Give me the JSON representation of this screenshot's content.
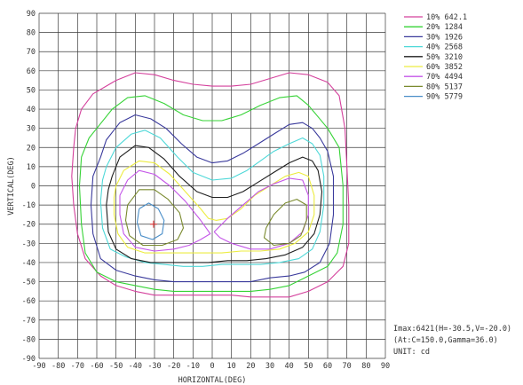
{
  "chart_data": {
    "type": "line",
    "xlabel": "HORIZONTAL(DEG)",
    "ylabel": "VERTICAL(DEG)",
    "xlim": [
      -90,
      90
    ],
    "ylim": [
      -90,
      90
    ],
    "x_ticks": [
      -90,
      -80,
      -70,
      -60,
      -50,
      -40,
      -30,
      -20,
      -10,
      0,
      10,
      20,
      30,
      40,
      50,
      60,
      70,
      80,
      90
    ],
    "y_ticks": [
      90,
      80,
      70,
      60,
      50,
      40,
      30,
      20,
      10,
      0,
      -10,
      -20,
      -30,
      -40,
      -50,
      -60,
      -70,
      -80,
      -90
    ],
    "grid": true,
    "legend_position": "right",
    "series": [
      {
        "name": "10% 642.1",
        "color": "#d4409c",
        "points": [
          [
            -68,
            40
          ],
          [
            -62,
            48
          ],
          [
            -50,
            55
          ],
          [
            -40,
            59
          ],
          [
            -30,
            58
          ],
          [
            -20,
            55
          ],
          [
            -10,
            53
          ],
          [
            0,
            52
          ],
          [
            10,
            52
          ],
          [
            20,
            53
          ],
          [
            30,
            56
          ],
          [
            40,
            59
          ],
          [
            50,
            58
          ],
          [
            60,
            54
          ],
          [
            66,
            47
          ],
          [
            69,
            30
          ],
          [
            70,
            10
          ],
          [
            71,
            -10
          ],
          [
            71,
            -30
          ],
          [
            68,
            -42
          ],
          [
            60,
            -50
          ],
          [
            50,
            -55
          ],
          [
            40,
            -58
          ],
          [
            30,
            -58
          ],
          [
            20,
            -58
          ],
          [
            10,
            -57
          ],
          [
            0,
            -57
          ],
          [
            -10,
            -57
          ],
          [
            -20,
            -57
          ],
          [
            -30,
            -57
          ],
          [
            -40,
            -55
          ],
          [
            -50,
            -52
          ],
          [
            -58,
            -47
          ],
          [
            -66,
            -38
          ],
          [
            -70,
            -25
          ],
          [
            -72,
            -10
          ],
          [
            -73,
            5
          ],
          [
            -72,
            20
          ],
          [
            -71,
            30
          ],
          [
            -68,
            40
          ]
        ]
      },
      {
        "name": "20% 1284",
        "color": "#36d336",
        "points": [
          [
            -64,
            25
          ],
          [
            -60,
            30
          ],
          [
            -52,
            40
          ],
          [
            -44,
            46
          ],
          [
            -35,
            47
          ],
          [
            -25,
            43
          ],
          [
            -15,
            37
          ],
          [
            -5,
            34
          ],
          [
            5,
            34
          ],
          [
            15,
            37
          ],
          [
            25,
            42
          ],
          [
            35,
            46
          ],
          [
            44,
            47
          ],
          [
            50,
            42
          ],
          [
            55,
            36
          ],
          [
            60,
            30
          ],
          [
            66,
            20
          ],
          [
            68,
            0
          ],
          [
            68,
            -20
          ],
          [
            65,
            -35
          ],
          [
            60,
            -42
          ],
          [
            50,
            -47
          ],
          [
            40,
            -52
          ],
          [
            30,
            -54
          ],
          [
            20,
            -55
          ],
          [
            10,
            -55
          ],
          [
            0,
            -55
          ],
          [
            -10,
            -55
          ],
          [
            -20,
            -55
          ],
          [
            -30,
            -54
          ],
          [
            -40,
            -52
          ],
          [
            -50,
            -50
          ],
          [
            -60,
            -45
          ],
          [
            -66,
            -35
          ],
          [
            -68,
            -20
          ],
          [
            -69,
            0
          ],
          [
            -68,
            15
          ],
          [
            -64,
            25
          ]
        ]
      },
      {
        "name": "30% 1926",
        "color": "#3a3a9c",
        "points": [
          [
            -58,
            15
          ],
          [
            -55,
            24
          ],
          [
            -48,
            33
          ],
          [
            -40,
            37
          ],
          [
            -32,
            35
          ],
          [
            -24,
            30
          ],
          [
            -16,
            22
          ],
          [
            -8,
            15
          ],
          [
            0,
            12
          ],
          [
            8,
            13
          ],
          [
            16,
            17
          ],
          [
            24,
            22
          ],
          [
            32,
            27
          ],
          [
            40,
            32
          ],
          [
            47,
            33
          ],
          [
            52,
            30
          ],
          [
            56,
            25
          ],
          [
            60,
            18
          ],
          [
            63,
            5
          ],
          [
            63,
            -15
          ],
          [
            61,
            -30
          ],
          [
            56,
            -40
          ],
          [
            48,
            -45
          ],
          [
            40,
            -47
          ],
          [
            30,
            -48
          ],
          [
            20,
            -50
          ],
          [
            10,
            -50
          ],
          [
            0,
            -50
          ],
          [
            -10,
            -50
          ],
          [
            -20,
            -50
          ],
          [
            -30,
            -49
          ],
          [
            -40,
            -47
          ],
          [
            -50,
            -44
          ],
          [
            -58,
            -38
          ],
          [
            -62,
            -25
          ],
          [
            -63,
            -10
          ],
          [
            -62,
            5
          ],
          [
            -58,
            15
          ]
        ]
      },
      {
        "name": "40% 2568",
        "color": "#4ed8d8",
        "points": [
          [
            -55,
            10
          ],
          [
            -50,
            20
          ],
          [
            -42,
            27
          ],
          [
            -35,
            29
          ],
          [
            -27,
            25
          ],
          [
            -18,
            15
          ],
          [
            -10,
            7
          ],
          [
            0,
            3
          ],
          [
            10,
            4
          ],
          [
            18,
            8
          ],
          [
            25,
            13
          ],
          [
            32,
            18
          ],
          [
            40,
            22
          ],
          [
            47,
            25
          ],
          [
            52,
            22
          ],
          [
            56,
            16
          ],
          [
            58,
            5
          ],
          [
            58,
            -10
          ],
          [
            56,
            -24
          ],
          [
            52,
            -33
          ],
          [
            45,
            -38
          ],
          [
            35,
            -40
          ],
          [
            25,
            -41
          ],
          [
            15,
            -41
          ],
          [
            5,
            -41
          ],
          [
            -5,
            -42
          ],
          [
            -15,
            -42
          ],
          [
            -25,
            -41
          ],
          [
            -35,
            -40
          ],
          [
            -45,
            -37
          ],
          [
            -53,
            -33
          ],
          [
            -57,
            -22
          ],
          [
            -58,
            -8
          ],
          [
            -57,
            3
          ],
          [
            -55,
            10
          ]
        ]
      },
      {
        "name": "50% 3210",
        "color": "#1e1e1e",
        "points": [
          [
            -52,
            5
          ],
          [
            -48,
            15
          ],
          [
            -40,
            21
          ],
          [
            -33,
            20
          ],
          [
            -25,
            14
          ],
          [
            -17,
            5
          ],
          [
            -8,
            -3
          ],
          [
            0,
            -6
          ],
          [
            8,
            -6
          ],
          [
            16,
            -3
          ],
          [
            24,
            2
          ],
          [
            32,
            7
          ],
          [
            40,
            12
          ],
          [
            47,
            15
          ],
          [
            52,
            13
          ],
          [
            55,
            8
          ],
          [
            57,
            -3
          ],
          [
            56,
            -15
          ],
          [
            53,
            -25
          ],
          [
            47,
            -32
          ],
          [
            38,
            -36
          ],
          [
            28,
            -38
          ],
          [
            18,
            -39
          ],
          [
            8,
            -39
          ],
          [
            -2,
            -40
          ],
          [
            -12,
            -40
          ],
          [
            -22,
            -40
          ],
          [
            -32,
            -40
          ],
          [
            -42,
            -38
          ],
          [
            -50,
            -33
          ],
          [
            -54,
            -24
          ],
          [
            -55,
            -10
          ],
          [
            -54,
            -2
          ],
          [
            -52,
            5
          ]
        ]
      },
      {
        "name": "60% 3852",
        "color": "#ecec40",
        "points": [
          [
            -50,
            0
          ],
          [
            -46,
            8
          ],
          [
            -38,
            13
          ],
          [
            -30,
            12
          ],
          [
            -22,
            6
          ],
          [
            -14,
            -3
          ],
          [
            -6,
            -12
          ],
          [
            -2,
            -17
          ],
          [
            2,
            -18
          ],
          [
            8,
            -17
          ],
          [
            15,
            -12
          ],
          [
            22,
            -5
          ],
          [
            30,
            0
          ],
          [
            38,
            5
          ],
          [
            45,
            7
          ],
          [
            50,
            5
          ],
          [
            53,
            -5
          ],
          [
            53,
            -15
          ],
          [
            50,
            -24
          ],
          [
            43,
            -30
          ],
          [
            35,
            -33
          ],
          [
            25,
            -34
          ],
          [
            15,
            -34
          ],
          [
            5,
            -35
          ],
          [
            -5,
            -35
          ],
          [
            -15,
            -35
          ],
          [
            -25,
            -35
          ],
          [
            -35,
            -35
          ],
          [
            -44,
            -32
          ],
          [
            -49,
            -25
          ],
          [
            -51,
            -15
          ],
          [
            -51,
            -6
          ],
          [
            -50,
            0
          ]
        ]
      },
      {
        "name": "70% 4494",
        "color": "#c456e8",
        "points": [
          [
            -48,
            -5
          ],
          [
            -44,
            3
          ],
          [
            -38,
            8
          ],
          [
            -30,
            6
          ],
          [
            -22,
            0
          ],
          [
            -14,
            -8
          ],
          [
            -6,
            -18
          ],
          [
            -1,
            -25
          ],
          [
            -6,
            -28
          ],
          [
            -12,
            -31
          ],
          [
            -20,
            -33
          ],
          [
            -30,
            -34
          ],
          [
            -40,
            -32
          ],
          [
            -46,
            -25
          ],
          [
            -48,
            -15
          ],
          [
            -48,
            -5
          ]
        ]
      },
      {
        "name": "70% 4494",
        "color": "#c456e8",
        "points": [
          [
            1,
            -24
          ],
          [
            8,
            -17
          ],
          [
            16,
            -10
          ],
          [
            24,
            -3
          ],
          [
            32,
            1
          ],
          [
            40,
            4
          ],
          [
            47,
            3
          ],
          [
            50,
            -5
          ],
          [
            50,
            -15
          ],
          [
            47,
            -24
          ],
          [
            40,
            -30
          ],
          [
            30,
            -33
          ],
          [
            20,
            -33
          ],
          [
            10,
            -30
          ],
          [
            4,
            -27
          ],
          [
            1,
            -24
          ]
        ]
      },
      {
        "name": "80% 5137",
        "color": "#7a8a2e",
        "points": [
          [
            -44,
            -10
          ],
          [
            -38,
            -2
          ],
          [
            -30,
            -2
          ],
          [
            -23,
            -7
          ],
          [
            -17,
            -14
          ],
          [
            -15,
            -22
          ],
          [
            -18,
            -28
          ],
          [
            -26,
            -31
          ],
          [
            -36,
            -31
          ],
          [
            -43,
            -26
          ],
          [
            -45,
            -18
          ],
          [
            -44,
            -10
          ]
        ]
      },
      {
        "name": "80% 5137",
        "color": "#7a8a2e",
        "points": [
          [
            28,
            -22
          ],
          [
            32,
            -15
          ],
          [
            38,
            -9
          ],
          [
            44,
            -7
          ],
          [
            49,
            -10
          ],
          [
            49,
            -18
          ],
          [
            46,
            -26
          ],
          [
            40,
            -30
          ],
          [
            32,
            -31
          ],
          [
            27,
            -27
          ],
          [
            28,
            -22
          ]
        ]
      },
      {
        "name": "90% 5779",
        "color": "#4a8ec8",
        "points": [
          [
            -38,
            -12
          ],
          [
            -33,
            -9
          ],
          [
            -28,
            -12
          ],
          [
            -25,
            -18
          ],
          [
            -26,
            -25
          ],
          [
            -31,
            -28
          ],
          [
            -37,
            -26
          ],
          [
            -39,
            -19
          ],
          [
            -38,
            -12
          ]
        ]
      }
    ],
    "peak": {
      "h": -30.5,
      "v": -20.0,
      "color": "#e03030"
    }
  },
  "info": {
    "line1": "Imax:6421(H=-30.5,V=-20.0)",
    "line2": "(At:C=150.0,Gamma=36.0)",
    "line3": "UNIT: cd"
  }
}
